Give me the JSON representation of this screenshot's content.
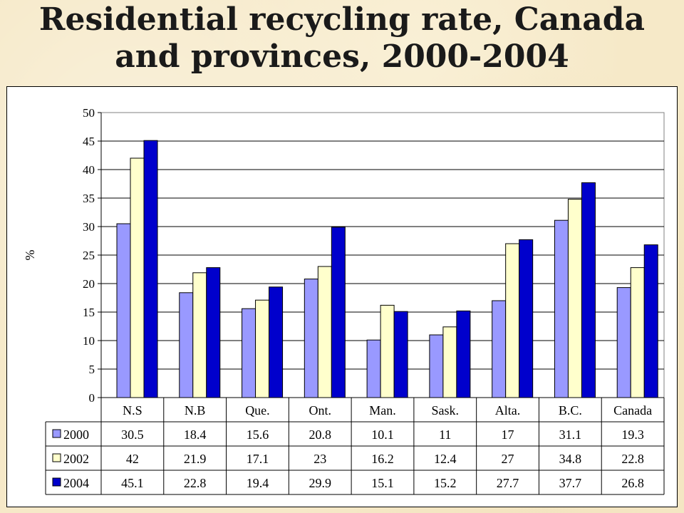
{
  "title_line1": "Residential recycling rate, Canada",
  "title_line2": "and provinces, 2000-2004",
  "chart_data": {
    "type": "bar",
    "title": "Residential recycling rate, Canada and provinces, 2000-2004",
    "xlabel": "",
    "ylabel": "%",
    "ylim": [
      0,
      50
    ],
    "yticks": [
      0,
      5,
      10,
      15,
      20,
      25,
      30,
      35,
      40,
      45,
      50
    ],
    "grid": true,
    "legend": "in data table, left",
    "categories": [
      "N.S",
      "N.B",
      "Que.",
      "Ont.",
      "Man.",
      "Sask.",
      "Alta.",
      "B.C.",
      "Canada"
    ],
    "series": [
      {
        "name": "2000",
        "color": "#9999ff",
        "values": [
          30.5,
          18.4,
          15.6,
          20.8,
          10.1,
          11,
          17,
          31.1,
          19.3
        ],
        "table_labels": [
          "30.5",
          "18.4",
          "15.6",
          "20.8",
          "10.1",
          "11",
          "17",
          "31.1",
          "19.3"
        ]
      },
      {
        "name": "2002",
        "color": "#ffffcc",
        "values": [
          42,
          21.9,
          17.1,
          23,
          16.2,
          12.4,
          27,
          34.8,
          22.8
        ],
        "table_labels": [
          "42",
          "21.9",
          "17.1",
          "23",
          "16.2",
          "12.4",
          "27",
          "34.8",
          "22.8"
        ]
      },
      {
        "name": "2004",
        "color": "#0000cc",
        "values": [
          45.1,
          22.8,
          19.4,
          29.9,
          15.1,
          15.2,
          27.7,
          37.7,
          26.8
        ],
        "table_labels": [
          "45.1",
          "22.8",
          "19.4",
          "29.9",
          "15.1",
          "15.2",
          "27.7",
          "37.7",
          "26.8"
        ]
      }
    ]
  }
}
